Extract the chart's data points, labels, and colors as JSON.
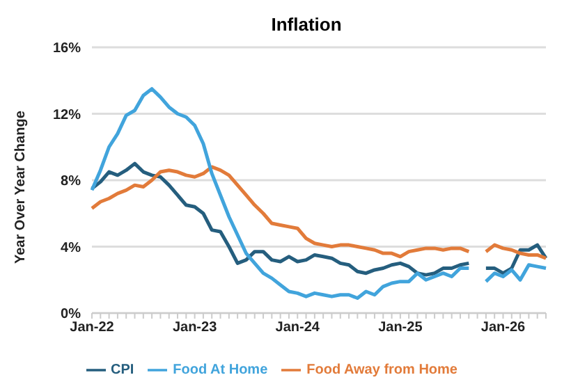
{
  "chart_data": {
    "type": "line",
    "title": "Inflation",
    "ylabel": "Year Over Year Change",
    "categories": [
      "Jan-22",
      null,
      null,
      null,
      null,
      null,
      null,
      null,
      null,
      null,
      null,
      null,
      "Jan-23",
      null,
      null,
      null,
      null,
      null,
      null,
      null,
      null,
      null,
      null,
      null,
      "Jan-24",
      null,
      null,
      null,
      null,
      null,
      null,
      null,
      null,
      null,
      null,
      null,
      "Jan-25",
      null,
      null,
      null,
      null,
      null,
      null,
      null,
      null,
      null,
      null,
      null,
      "Jan-26",
      null,
      null,
      null,
      null,
      null
    ],
    "series": [
      {
        "name": "CPI",
        "color": "#255e7e",
        "values": [
          7.5,
          7.9,
          8.5,
          8.3,
          8.6,
          9.0,
          8.5,
          8.3,
          8.2,
          7.7,
          7.1,
          6.5,
          6.4,
          6.0,
          5.0,
          4.9,
          4.0,
          3.0,
          3.2,
          3.7,
          3.7,
          3.2,
          3.1,
          3.4,
          3.1,
          3.2,
          3.5,
          3.4,
          3.3,
          3.0,
          2.9,
          2.5,
          2.4,
          2.6,
          2.7,
          2.9,
          3.0,
          2.8,
          2.4,
          2.3,
          2.4,
          2.7,
          2.7,
          2.9,
          3.0,
          null,
          2.7,
          2.7,
          2.4,
          2.7,
          3.8,
          3.8,
          4.1,
          3.3
        ]
      },
      {
        "name": "Food Away from Home",
        "color": "#e27b3a",
        "values": [
          6.3,
          6.7,
          6.9,
          7.2,
          7.4,
          7.7,
          7.6,
          8.0,
          8.5,
          8.6,
          8.5,
          8.3,
          8.2,
          8.4,
          8.8,
          8.6,
          8.3,
          7.7,
          7.1,
          6.5,
          6.0,
          5.4,
          5.3,
          5.2,
          5.1,
          4.5,
          4.2,
          4.1,
          4.0,
          4.1,
          4.1,
          4.0,
          3.9,
          3.8,
          3.6,
          3.6,
          3.4,
          3.7,
          3.8,
          3.9,
          3.9,
          3.8,
          3.9,
          3.9,
          3.7,
          null,
          3.7,
          4.1,
          3.9,
          3.8,
          3.6,
          3.5,
          3.5,
          3.3
        ]
      },
      {
        "name": "Food At Home",
        "color": "#41a4dc",
        "values": [
          7.4,
          8.6,
          10.0,
          10.8,
          11.9,
          12.2,
          13.1,
          13.5,
          13.0,
          12.4,
          12.0,
          11.8,
          11.3,
          10.2,
          8.4,
          7.1,
          5.8,
          4.7,
          3.6,
          3.0,
          2.4,
          2.1,
          1.7,
          1.3,
          1.2,
          1.0,
          1.2,
          1.1,
          1.0,
          1.1,
          1.1,
          0.9,
          1.3,
          1.1,
          1.6,
          1.8,
          1.9,
          1.9,
          2.4,
          2.0,
          2.2,
          2.4,
          2.2,
          2.7,
          2.7,
          null,
          1.9,
          2.4,
          2.2,
          2.6,
          2.0,
          2.9,
          2.8,
          2.7
        ]
      }
    ],
    "ylim": [
      0,
      16
    ],
    "yticks": [
      {
        "value": 0,
        "label": "0%"
      },
      {
        "value": 4,
        "label": "4%"
      },
      {
        "value": 8,
        "label": "8%"
      },
      {
        "value": 12,
        "label": "12%"
      },
      {
        "value": 16,
        "label": "16%"
      }
    ],
    "grid": "y",
    "legend": "bottom",
    "marker": "none",
    "line_style": "solid"
  }
}
